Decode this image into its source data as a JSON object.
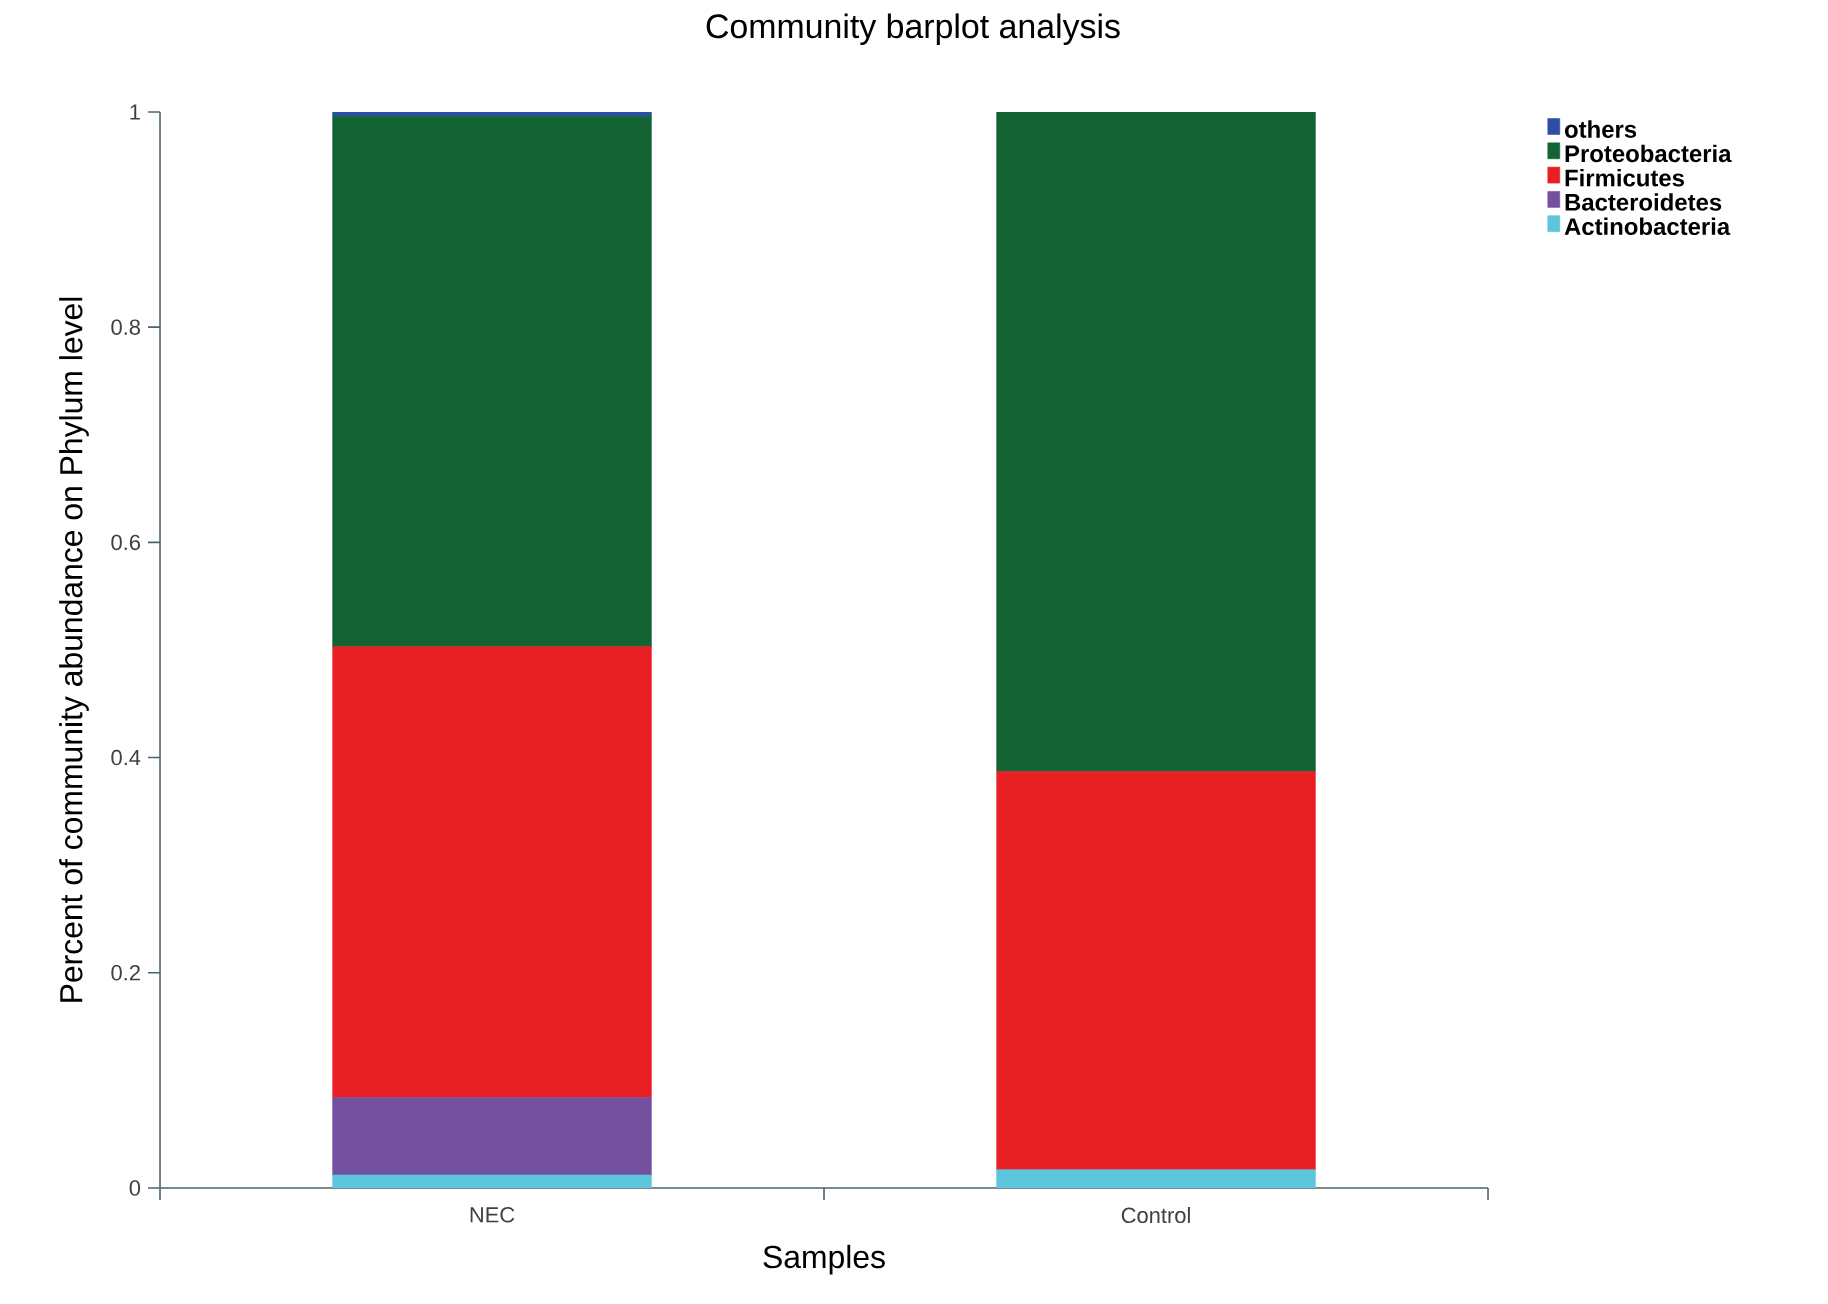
{
  "chart_data": {
    "type": "bar",
    "stacked": true,
    "title": "Community barplot analysis",
    "xlabel": "Samples",
    "ylabel": "Percent of community abundance on Phylum level",
    "categories": [
      "NEC",
      "Control"
    ],
    "series": [
      {
        "name": "Actinobacteria",
        "color": "#5bc6dc",
        "values": [
          0.012,
          0.017
        ]
      },
      {
        "name": "Bacteroidetes",
        "color": "#7450a0",
        "values": [
          0.072,
          0
        ]
      },
      {
        "name": "Firmicutes",
        "color": "#e82024",
        "values": [
          0.419,
          0.37
        ]
      },
      {
        "name": "Proteobacteria",
        "color": "#136334",
        "values": [
          0.493,
          0.613
        ]
      },
      {
        "name": "others",
        "color": "#2c4fa6",
        "values": [
          0.004,
          0
        ]
      }
    ],
    "ylim": [
      0,
      1
    ],
    "yticks": [
      0,
      0.2,
      0.4,
      0.6,
      0.8,
      1
    ],
    "grid": false,
    "legend": "top right"
  }
}
